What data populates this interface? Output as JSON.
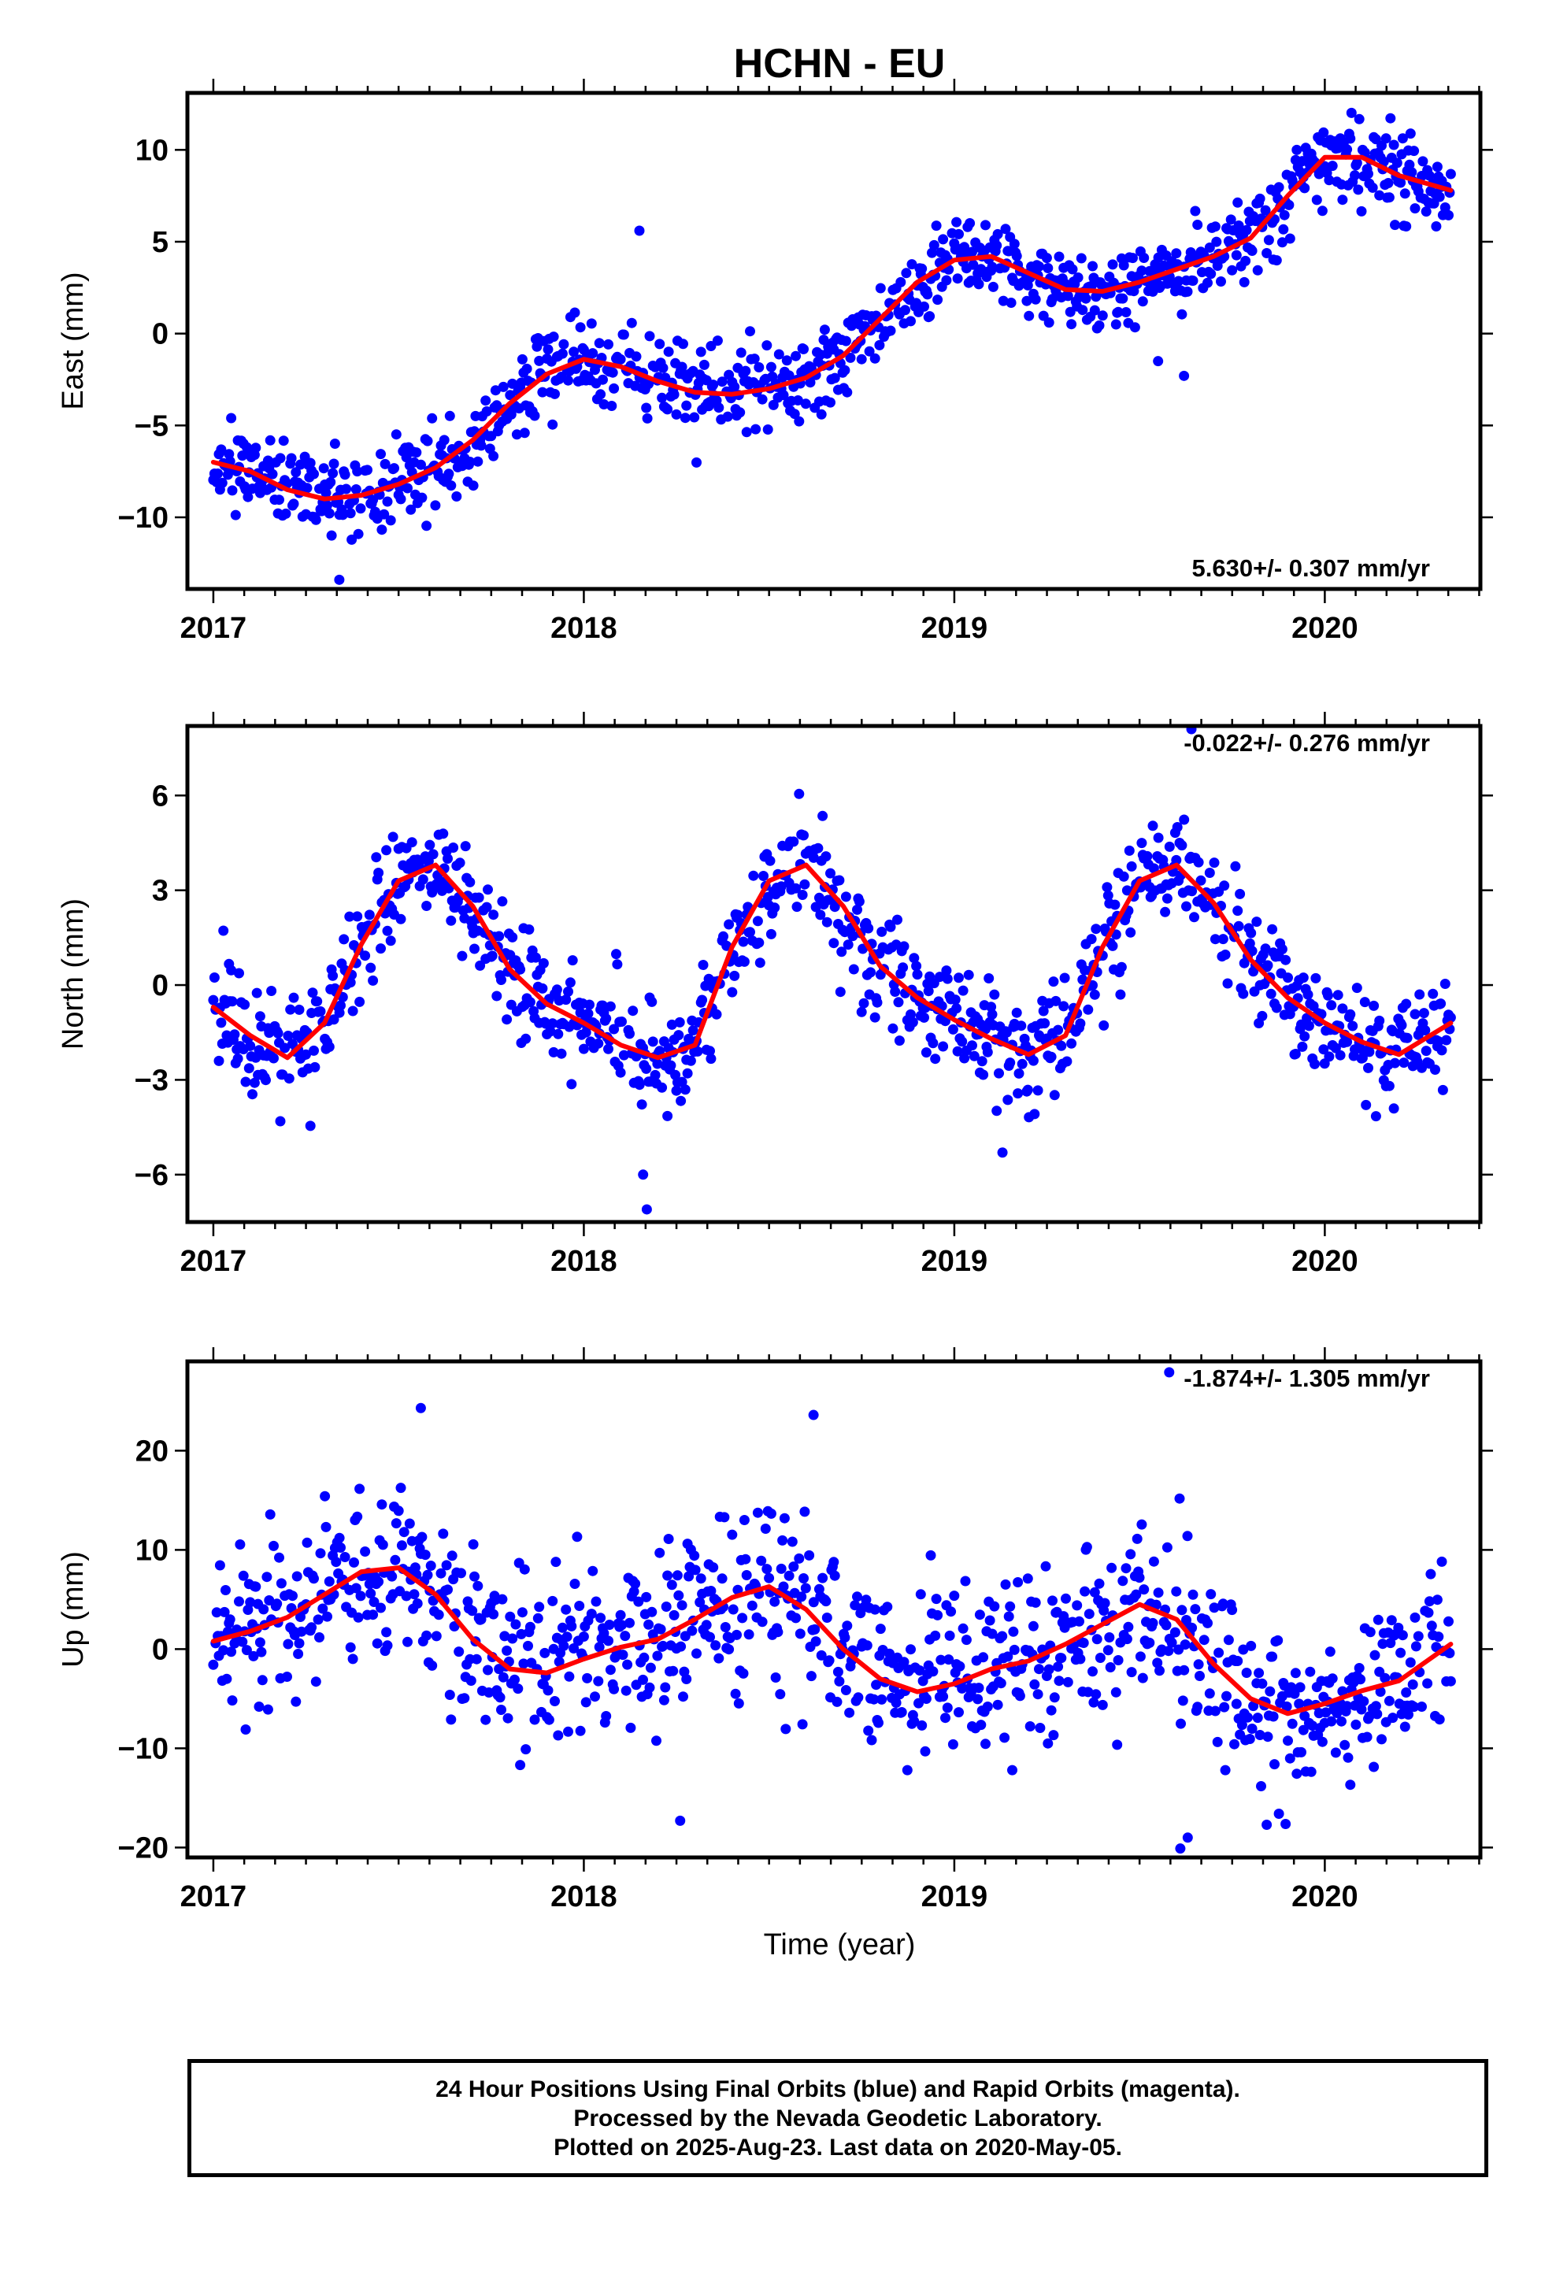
{
  "title": "HCHN - EU",
  "xlabel": "Time (year)",
  "colors": {
    "final_orbits": "#0000ff",
    "fit": "#ff0000",
    "frame": "#000000"
  },
  "footer": {
    "line1": "24 Hour Positions Using Final Orbits (blue) and Rapid Orbits (magenta).",
    "line2": "Processed by the Nevada Geodetic Laboratory.",
    "line3": "Plotted on 2025-Aug-23. Last data on 2020-May-05."
  },
  "chart_data": [
    {
      "type": "scatter",
      "component": "east",
      "ylabel": "East (mm)",
      "rate": "5.630+/- 0.307 mm/yr",
      "rate_position": "bottom-right",
      "xlim": [
        2016.93,
        2020.42
      ],
      "ylim": [
        -13.9,
        13.1
      ],
      "xticks": [
        2017,
        2018,
        2019,
        2020
      ],
      "yticks": [
        -10,
        -5,
        0,
        5,
        10
      ],
      "grid": false,
      "fit_curve": {
        "x": [
          2017.0,
          2017.1,
          2017.2,
          2017.3,
          2017.4,
          2017.5,
          2017.6,
          2017.7,
          2017.8,
          2017.9,
          2018.0,
          2018.1,
          2018.2,
          2018.3,
          2018.4,
          2018.5,
          2018.6,
          2018.7,
          2018.8,
          2018.9,
          2019.0,
          2019.1,
          2019.2,
          2019.3,
          2019.4,
          2019.5,
          2019.6,
          2019.7,
          2019.8,
          2019.9,
          2020.0,
          2020.1,
          2020.2,
          2020.34
        ],
        "y": [
          -7.0,
          -7.5,
          -8.5,
          -9.0,
          -8.8,
          -8.2,
          -7.3,
          -5.8,
          -3.8,
          -2.2,
          -1.4,
          -1.8,
          -2.6,
          -3.2,
          -3.3,
          -3.0,
          -2.4,
          -1.2,
          0.8,
          2.8,
          4.0,
          4.2,
          3.3,
          2.4,
          2.3,
          2.8,
          3.5,
          4.2,
          5.2,
          7.5,
          9.6,
          9.6,
          8.6,
          7.8
        ]
      },
      "scatter_model": {
        "type": "noisy",
        "sigma": 1.1,
        "seed": 11,
        "outliers": [
          [
            2017.34,
            -13.4
          ],
          [
            2018.15,
            5.6
          ],
          [
            2019.62,
            -2.3
          ],
          [
            2019.55,
            -1.5
          ]
        ]
      }
    },
    {
      "type": "scatter",
      "component": "north",
      "ylabel": "North (mm)",
      "rate": "-0.022+/- 0.276 mm/yr",
      "rate_position": "top-right",
      "xlim": [
        2016.93,
        2020.42
      ],
      "ylim": [
        -7.5,
        8.2
      ],
      "xticks": [
        2017,
        2018,
        2019,
        2020
      ],
      "yticks": [
        -6,
        -3,
        0,
        3,
        6
      ],
      "grid": false,
      "fit_curve": {
        "x": [
          2017.0,
          2017.1,
          2017.2,
          2017.3,
          2017.4,
          2017.5,
          2017.6,
          2017.7,
          2017.8,
          2017.9,
          2018.0,
          2018.1,
          2018.2,
          2018.3,
          2018.4,
          2018.5,
          2018.6,
          2018.7,
          2018.8,
          2018.9,
          2019.0,
          2019.1,
          2019.2,
          2019.3,
          2019.4,
          2019.5,
          2019.6,
          2019.7,
          2019.8,
          2019.9,
          2020.0,
          2020.1,
          2020.2,
          2020.34
        ],
        "y": [
          -0.7,
          -1.6,
          -2.3,
          -1.2,
          1.3,
          3.3,
          3.8,
          2.5,
          0.5,
          -0.6,
          -1.2,
          -1.9,
          -2.3,
          -1.9,
          1.2,
          3.3,
          3.8,
          2.5,
          0.6,
          -0.4,
          -1.1,
          -1.7,
          -2.2,
          -1.6,
          1.2,
          3.3,
          3.8,
          2.6,
          0.8,
          -0.4,
          -1.2,
          -1.8,
          -2.2,
          -1.2
        ]
      },
      "scatter_model": {
        "type": "noisy",
        "sigma": 0.85,
        "seed": 22,
        "outliers": [
          [
            2018.17,
            -7.1
          ],
          [
            2018.16,
            -6.0
          ],
          [
            2019.13,
            -5.3
          ],
          [
            2019.64,
            8.1
          ]
        ]
      }
    },
    {
      "type": "scatter",
      "component": "up",
      "ylabel": "Up (mm)",
      "rate": "-1.874+/- 1.305 mm/yr",
      "rate_position": "top-right",
      "xlim": [
        2016.93,
        2020.42
      ],
      "ylim": [
        -21.0,
        29.0
      ],
      "xticks": [
        2017,
        2018,
        2019,
        2020
      ],
      "yticks": [
        -20,
        -10,
        0,
        10,
        20
      ],
      "grid": false,
      "fit_curve": {
        "x": [
          2017.0,
          2017.1,
          2017.2,
          2017.3,
          2017.4,
          2017.5,
          2017.6,
          2017.7,
          2017.8,
          2017.9,
          2018.0,
          2018.1,
          2018.2,
          2018.3,
          2018.4,
          2018.5,
          2018.6,
          2018.7,
          2018.8,
          2018.9,
          2019.0,
          2019.1,
          2019.2,
          2019.3,
          2019.4,
          2019.5,
          2019.6,
          2019.7,
          2019.8,
          2019.9,
          2020.0,
          2020.1,
          2020.2,
          2020.34
        ],
        "y": [
          0.8,
          1.8,
          3.2,
          5.5,
          7.8,
          8.2,
          5.5,
          1.0,
          -2.0,
          -2.4,
          -1.0,
          0.2,
          1.0,
          3.0,
          5.2,
          6.3,
          4.0,
          0.0,
          -3.0,
          -4.3,
          -3.5,
          -2.0,
          -1.2,
          0.5,
          2.5,
          4.5,
          3.0,
          -1.5,
          -5.0,
          -6.5,
          -5.5,
          -4.2,
          -3.2,
          0.5
        ]
      },
      "scatter_model": {
        "type": "noisy",
        "sigma": 4.2,
        "seed": 33,
        "outliers": [
          [
            2017.56,
            24.3
          ],
          [
            2018.62,
            23.6
          ],
          [
            2019.58,
            27.9
          ],
          [
            2018.26,
            -17.3
          ],
          [
            2019.63,
            -19.0
          ],
          [
            2019.61,
            -20.1
          ]
        ]
      }
    }
  ]
}
